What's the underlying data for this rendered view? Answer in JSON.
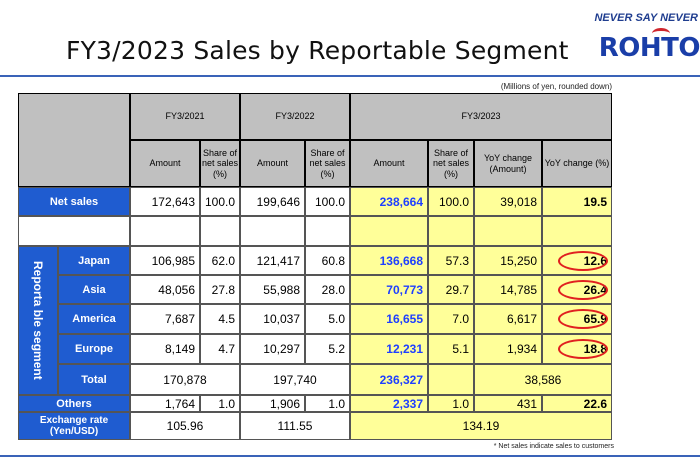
{
  "header": {
    "title": "FY3/2023 Sales by Reportable Segment",
    "tagline": "NEVER SAY NEVER",
    "logo": "ROHTO",
    "unit_note": "(Millions of yen, rounded down)",
    "footnote": "* Net sales indicate sales to customers"
  },
  "table": {
    "years": [
      "FY3/2021",
      "FY3/2022",
      "FY3/2023"
    ],
    "col_amount": "Amount",
    "col_share": "Share of net sales (%)",
    "col_yoy_amount": "YoY change (Amount)",
    "col_yoy_pct": "YoY change (%)",
    "segment_label": "Reporta ble segment",
    "net_sales": {
      "label": "Net sales",
      "fy21_amt": "172,643",
      "fy21_share": "100.0",
      "fy22_amt": "199,646",
      "fy22_share": "100.0",
      "fy23_amt": "238,664",
      "fy23_share": "100.0",
      "yoy_amt": "39,018",
      "yoy_pct": "19.5"
    },
    "segments": [
      {
        "label": "Japan",
        "fy21_amt": "106,985",
        "fy21_share": "62.0",
        "fy22_amt": "121,417",
        "fy22_share": "60.8",
        "fy23_amt": "136,668",
        "fy23_share": "57.3",
        "yoy_amt": "15,250",
        "yoy_pct": "12.6"
      },
      {
        "label": "Asia",
        "fy21_amt": "48,056",
        "fy21_share": "27.8",
        "fy22_amt": "55,988",
        "fy22_share": "28.0",
        "fy23_amt": "70,773",
        "fy23_share": "29.7",
        "yoy_amt": "14,785",
        "yoy_pct": "26.4"
      },
      {
        "label": "America",
        "fy21_amt": "7,687",
        "fy21_share": "4.5",
        "fy22_amt": "10,037",
        "fy22_share": "5.0",
        "fy23_amt": "16,655",
        "fy23_share": "7.0",
        "yoy_amt": "6,617",
        "yoy_pct": "65.9"
      },
      {
        "label": "Europe",
        "fy21_amt": "8,149",
        "fy21_share": "4.7",
        "fy22_amt": "10,297",
        "fy22_share": "5.2",
        "fy23_amt": "12,231",
        "fy23_share": "5.1",
        "yoy_amt": "1,934",
        "yoy_pct": "18.8"
      }
    ],
    "total": {
      "label": "Total",
      "fy21_amt": "170,878",
      "fy22_amt": "197,740",
      "fy23_amt": "236,327",
      "yoy_amt": "38,586"
    },
    "others": {
      "label": "Others",
      "fy21_amt": "1,764",
      "fy21_share": "1.0",
      "fy22_amt": "1,906",
      "fy22_share": "1.0",
      "fy23_amt": "2,337",
      "fy23_share": "1.0",
      "yoy_amt": "431",
      "yoy_pct": "22.6"
    },
    "exchange": {
      "label": "Exchange rate (Yen/USD)",
      "fy21": "105.96",
      "fy22": "111.55",
      "fy23": "134.19"
    }
  },
  "colors": {
    "header_gray": "#c0c0c0",
    "label_blue": "#1f5cd0",
    "highlight_yellow": "#ffff99",
    "value_blue": "#1e3fff",
    "circle_red": "#e02020"
  }
}
